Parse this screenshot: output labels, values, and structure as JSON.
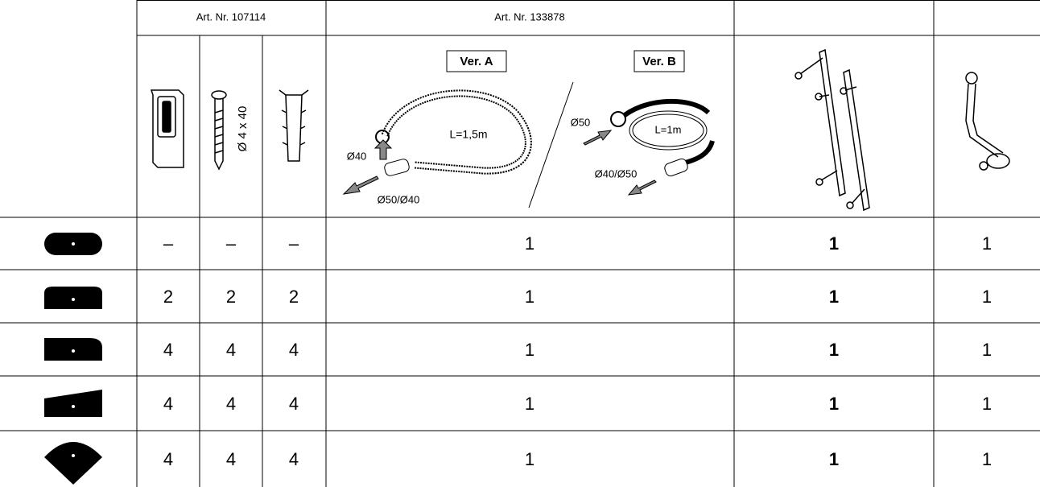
{
  "header": {
    "group1": "Art. Nr. 107114",
    "group2": "Art. Nr. 133878"
  },
  "parts": {
    "screw_label": "Ø 4 x 40",
    "ver_a": "Ver. A",
    "ver_b": "Ver. B",
    "length_a": "L=1,5m",
    "dia_a_in": "Ø40",
    "dia_a_out": "Ø50/Ø40",
    "dia_b_in": "Ø50",
    "length_b": "L=1m",
    "dia_b_out": "Ø40/Ø50"
  },
  "table": {
    "rows": [
      [
        "–",
        "–",
        "–",
        1,
        1,
        1
      ],
      [
        2,
        2,
        2,
        1,
        1,
        1
      ],
      [
        4,
        4,
        4,
        1,
        1,
        1
      ],
      [
        4,
        4,
        4,
        1,
        1,
        1
      ],
      [
        4,
        4,
        4,
        1,
        1,
        1
      ]
    ]
  }
}
